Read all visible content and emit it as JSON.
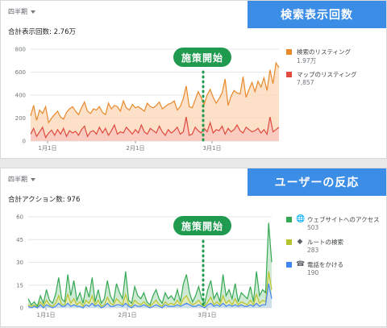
{
  "panels": [
    {
      "period": "四半期",
      "total": "合計表示回数: 2.76万",
      "banner": "検索表示回数",
      "callout": "施策開始",
      "legend": [
        {
          "label": "検索のリスティング",
          "value": "1.97万",
          "color": "#e8892b",
          "icon": "none"
        },
        {
          "label": "マップのリスティング",
          "value": "7,857",
          "color": "#e04a3f",
          "icon": "none"
        }
      ],
      "chart_data": {
        "type": "area",
        "y_ticks": [
          "0",
          "200",
          "400",
          "600",
          "800"
        ],
        "x_ticks": [
          "1月1日",
          "2月1日",
          "3月1日"
        ],
        "ylim": [
          0,
          800
        ],
        "series": [
          {
            "name": "検索のリスティング",
            "color": "#e8892b",
            "fill": "#fbd6b4",
            "values": [
              220,
              310,
              180,
              270,
              240,
              300,
              160,
              200,
              230,
              260,
              210,
              190,
              250,
              280,
              300,
              260,
              230,
              290,
              340,
              260,
              240,
              280,
              270,
              300,
              250,
              230,
              330,
              280,
              310,
              300,
              260,
              350,
              290,
              270,
              320,
              290,
              300,
              280,
              260,
              330,
              300,
              290,
              310,
              340,
              280,
              300,
              320,
              330,
              350,
              270,
              300,
              370,
              480,
              300,
              290,
              360,
              430,
              380,
              320,
              400,
              450,
              380,
              330,
              370,
              420,
              540,
              310,
              390,
              440,
              420,
              410,
              560,
              380,
              450,
              510,
              430,
              520,
              470,
              550,
              440,
              620,
              500,
              680,
              640
            ]
          },
          {
            "name": "マップのリスティング",
            "color": "#e04a3f",
            "fill": "#f8c4bf",
            "values": [
              60,
              110,
              40,
              80,
              120,
              30,
              70,
              95,
              50,
              100,
              60,
              110,
              40,
              90,
              70,
              85,
              50,
              100,
              130,
              40,
              80,
              90,
              60,
              120,
              70,
              110,
              50,
              90,
              140,
              60,
              80,
              70,
              120,
              90,
              60,
              100,
              70,
              140,
              80,
              60,
              110,
              90,
              70,
              130,
              80,
              50,
              100,
              70,
              90,
              120,
              60,
              80,
              210,
              50,
              60,
              120,
              90,
              70,
              110,
              80,
              160,
              70,
              100,
              90,
              130,
              60,
              110,
              80,
              100,
              140,
              90,
              70,
              120,
              100,
              80,
              90,
              110,
              70,
              100,
              60,
              210,
              80,
              100,
              120
            ]
          }
        ]
      }
    },
    {
      "period": "四半期",
      "total": "合計アクション数: 976",
      "banner": "ユーザーの反応",
      "callout": "施策開始",
      "legend": [
        {
          "label": "ウェブサイトへのアクセス",
          "value": "503",
          "color": "#34a853",
          "icon": "globe-icon"
        },
        {
          "label": "ルートの検索",
          "value": "283",
          "color": "#b8c42f",
          "icon": "directions-icon"
        },
        {
          "label": "電話をかける",
          "value": "190",
          "color": "#4285f4",
          "icon": "phone-icon"
        }
      ],
      "chart_data": {
        "type": "area",
        "y_ticks": [
          "0",
          "15",
          "30",
          "45",
          "60"
        ],
        "x_ticks": [
          "1月1日",
          "2月1日",
          "3月1日"
        ],
        "ylim": [
          0,
          60
        ],
        "series": [
          {
            "name": "ウェブサイトへのアクセス",
            "color": "#34a853",
            "fill": "#bfe3c6",
            "values": [
              6,
              2,
              4,
              1,
              8,
              3,
              12,
              5,
              3,
              9,
              20,
              6,
              4,
              22,
              8,
              18,
              5,
              10,
              3,
              14,
              7,
              20,
              4,
              12,
              3,
              6,
              18,
              8,
              4,
              16,
              10,
              6,
              24,
              5,
              3,
              14,
              8,
              6,
              10,
              4,
              2,
              8,
              12,
              6,
              3,
              10,
              6,
              8,
              5,
              12,
              4,
              16,
              22,
              10,
              4,
              8,
              14,
              6,
              3,
              12,
              18,
              6,
              10,
              4,
              22,
              8,
              12,
              6,
              16,
              4,
              10,
              8,
              6,
              14,
              4,
              24,
              8,
              12,
              10,
              56,
              30
            ]
          },
          {
            "name": "ルートの検索",
            "color": "#b8c42f",
            "fill": "#e5ebb0",
            "values": [
              2,
              1,
              2,
              0,
              4,
              1,
              5,
              2,
              1,
              3,
              8,
              2,
              2,
              9,
              3,
              6,
              2,
              4,
              1,
              5,
              3,
              8,
              2,
              5,
              1,
              2,
              7,
              3,
              2,
              6,
              4,
              2,
              9,
              2,
              1,
              5,
              3,
              2,
              4,
              2,
              1,
              3,
              5,
              2,
              1,
              4,
              2,
              3,
              2,
              5,
              2,
              6,
              8,
              4,
              2,
              3,
              5,
              2,
              1,
              4,
              7,
              2,
              4,
              2,
              8,
              3,
              5,
              2,
              6,
              2,
              4,
              3,
              2,
              5,
              2,
              9,
              3,
              5,
              4,
              24,
              12
            ]
          },
          {
            "name": "電話をかける",
            "color": "#4285f4",
            "fill": "#c6d9f7",
            "values": [
              1,
              0,
              1,
              0,
              2,
              0,
              2,
              1,
              0,
              1,
              3,
              1,
              1,
              3,
              1,
              2,
              1,
              1,
              0,
              2,
              1,
              3,
              1,
              2,
              0,
              1,
              3,
              1,
              1,
              2,
              2,
              1,
              3,
              1,
              0,
              2,
              1,
              1,
              2,
              1,
              0,
              1,
              2,
              1,
              0,
              2,
              1,
              1,
              1,
              2,
              1,
              2,
              3,
              2,
              1,
              1,
              2,
              1,
              0,
              2,
              3,
              1,
              2,
              1,
              3,
              1,
              2,
              1,
              2,
              1,
              2,
              1,
              1,
              2,
              1,
              3,
              1,
              2,
              2,
              16,
              6
            ]
          }
        ]
      }
    }
  ]
}
